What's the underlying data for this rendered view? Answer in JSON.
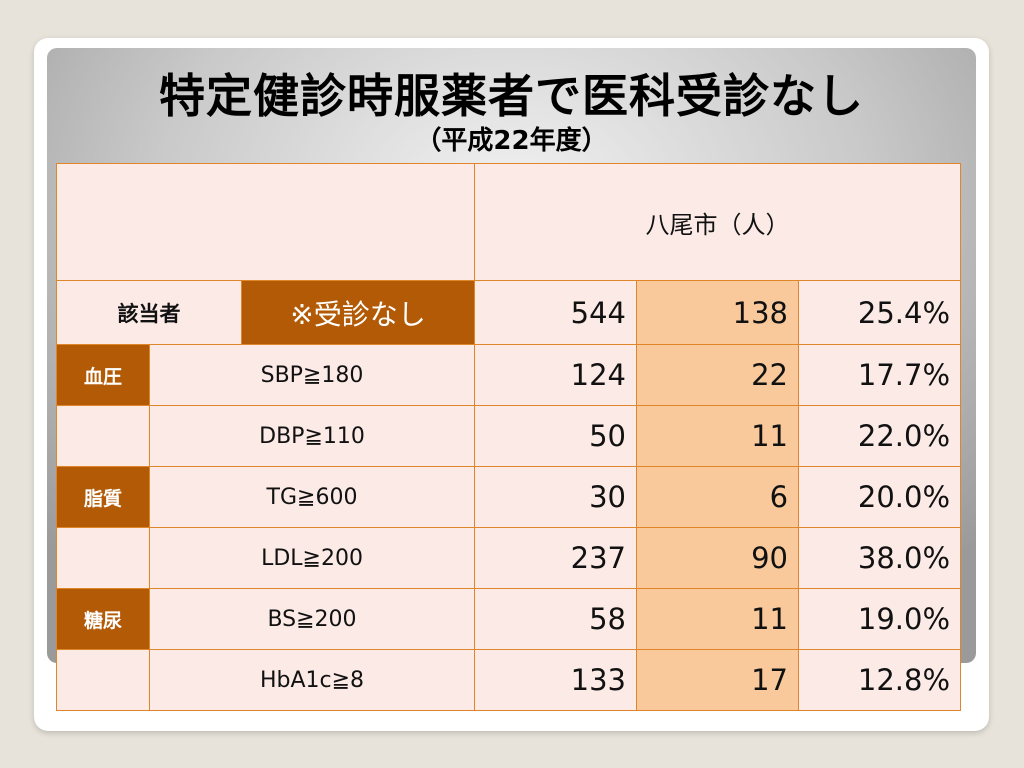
{
  "title": "特定健診時服薬者で医科受診なし",
  "subtitle": "（平成22年度）",
  "table": {
    "header_label": "八尾市（人）",
    "main_row": {
      "label": "該当者",
      "sublabel": "※受診なし",
      "total": "544",
      "no_visit": "138",
      "rate": "25.4%"
    },
    "rows": [
      {
        "category": "血圧",
        "criterion": "SBP≧180",
        "total": "124",
        "no_visit": "22",
        "rate": "17.7%"
      },
      {
        "category": "",
        "criterion": "DBP≧110",
        "total": "50",
        "no_visit": "11",
        "rate": "22.0%"
      },
      {
        "category": "脂質",
        "criterion": "TG≧600",
        "total": "30",
        "no_visit": "6",
        "rate": "20.0%"
      },
      {
        "category": "",
        "criterion": "LDL≧200",
        "total": "237",
        "no_visit": "90",
        "rate": "38.0%"
      },
      {
        "category": "糖尿",
        "criterion": "BS≧200",
        "total": "58",
        "no_visit": "11",
        "rate": "19.0%"
      },
      {
        "category": "",
        "criterion": "HbA1c≧8",
        "total": "133",
        "no_visit": "17",
        "rate": "12.8%"
      }
    ]
  },
  "colors": {
    "category_bg": "#b25a05",
    "highlight_bg": "#f9c99c",
    "cell_bg": "#fbeae6",
    "border": "#e0862a"
  }
}
